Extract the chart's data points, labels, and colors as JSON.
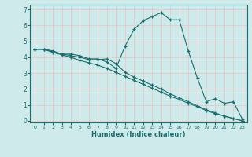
{
  "xlabel": "Humidex (Indice chaleur)",
  "bg_color": "#ceeaea",
  "grid_color": "#e8c8c8",
  "line_color": "#1a6e6e",
  "xlim": [
    -0.5,
    23.5
  ],
  "ylim": [
    -0.1,
    7.3
  ],
  "xticks": [
    0,
    1,
    2,
    3,
    4,
    5,
    6,
    7,
    8,
    9,
    10,
    11,
    12,
    13,
    14,
    15,
    16,
    17,
    18,
    19,
    20,
    21,
    22,
    23
  ],
  "yticks": [
    0,
    1,
    2,
    3,
    4,
    5,
    6,
    7
  ],
  "series": [
    [
      4.5,
      4.5,
      4.4,
      4.2,
      4.2,
      4.1,
      3.9,
      3.9,
      3.7,
      3.3,
      4.7,
      5.75,
      6.3,
      6.55,
      6.8,
      6.35,
      6.35,
      4.4,
      2.7,
      1.2,
      1.4,
      1.1,
      1.2,
      0.1
    ],
    [
      4.5,
      4.5,
      4.3,
      4.15,
      4.0,
      3.8,
      3.65,
      3.5,
      3.3,
      3.05,
      2.8,
      2.55,
      2.3,
      2.05,
      1.8,
      1.55,
      1.35,
      1.1,
      0.9,
      0.65,
      0.45,
      0.3,
      0.15,
      0.0
    ],
    [
      4.5,
      4.5,
      4.35,
      4.2,
      4.1,
      4.0,
      3.85,
      3.85,
      3.9,
      3.6,
      3.05,
      2.75,
      2.5,
      2.25,
      2.0,
      1.7,
      1.45,
      1.2,
      0.95,
      0.7,
      0.5,
      0.3,
      0.15,
      0.0
    ]
  ]
}
